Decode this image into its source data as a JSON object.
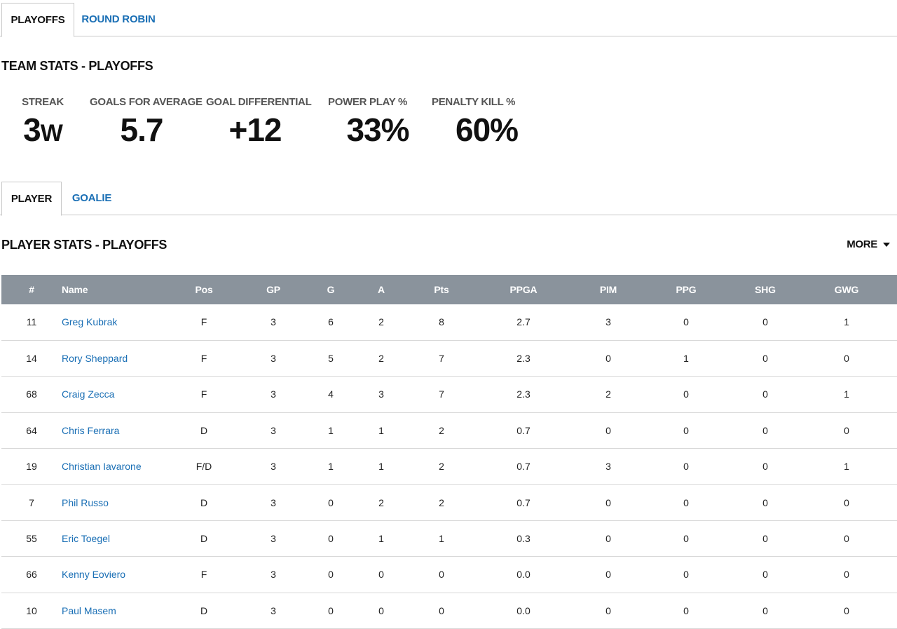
{
  "top_tabs": [
    {
      "label": "PLAYOFFS",
      "active": true
    },
    {
      "label": "ROUND ROBIN",
      "active": false
    }
  ],
  "team_stats": {
    "title": "TEAM STATS - PLAYOFFS",
    "items": [
      {
        "label": "STREAK",
        "value": "3",
        "suffix": "W"
      },
      {
        "label": "GOALS FOR AVERAGE",
        "value": "5.7",
        "suffix": ""
      },
      {
        "label": "GOAL DIFFERENTIAL",
        "value": "+12",
        "suffix": ""
      },
      {
        "label": "POWER PLAY %",
        "value": "33%",
        "suffix": ""
      },
      {
        "label": "PENALTY KILL %",
        "value": "60%",
        "suffix": ""
      }
    ]
  },
  "sub_tabs": [
    {
      "label": "PLAYER",
      "active": true
    },
    {
      "label": "GOALIE",
      "active": false
    }
  ],
  "player_stats": {
    "title": "PLAYER STATS - PLAYOFFS",
    "more_label": "MORE",
    "columns": [
      "#",
      "Name",
      "Pos",
      "GP",
      "G",
      "A",
      "Pts",
      "PPGA",
      "PIM",
      "PPG",
      "SHG",
      "GWG"
    ],
    "rows": [
      [
        "11",
        "Greg Kubrak",
        "F",
        "3",
        "6",
        "2",
        "8",
        "2.7",
        "3",
        "0",
        "0",
        "1"
      ],
      [
        "14",
        "Rory Sheppard",
        "F",
        "3",
        "5",
        "2",
        "7",
        "2.3",
        "0",
        "1",
        "0",
        "0"
      ],
      [
        "68",
        "Craig Zecca",
        "F",
        "3",
        "4",
        "3",
        "7",
        "2.3",
        "2",
        "0",
        "0",
        "1"
      ],
      [
        "64",
        "Chris Ferrara",
        "D",
        "3",
        "1",
        "1",
        "2",
        "0.7",
        "0",
        "0",
        "0",
        "0"
      ],
      [
        "19",
        "Christian Iavarone",
        "F/D",
        "3",
        "1",
        "1",
        "2",
        "0.7",
        "3",
        "0",
        "0",
        "1"
      ],
      [
        "7",
        "Phil Russo",
        "D",
        "3",
        "0",
        "2",
        "2",
        "0.7",
        "0",
        "0",
        "0",
        "0"
      ],
      [
        "55",
        "Eric Toegel",
        "D",
        "3",
        "0",
        "1",
        "1",
        "0.3",
        "0",
        "0",
        "0",
        "0"
      ],
      [
        "66",
        "Kenny Eoviero",
        "F",
        "3",
        "0",
        "0",
        "0",
        "0.0",
        "0",
        "0",
        "0",
        "0"
      ],
      [
        "10",
        "Paul Masem",
        "D",
        "3",
        "0",
        "0",
        "0",
        "0.0",
        "0",
        "0",
        "0",
        "0"
      ]
    ]
  },
  "colors": {
    "link": "#1a6fb5",
    "header_bg": "#8a939c",
    "border": "#c8c8c8"
  }
}
